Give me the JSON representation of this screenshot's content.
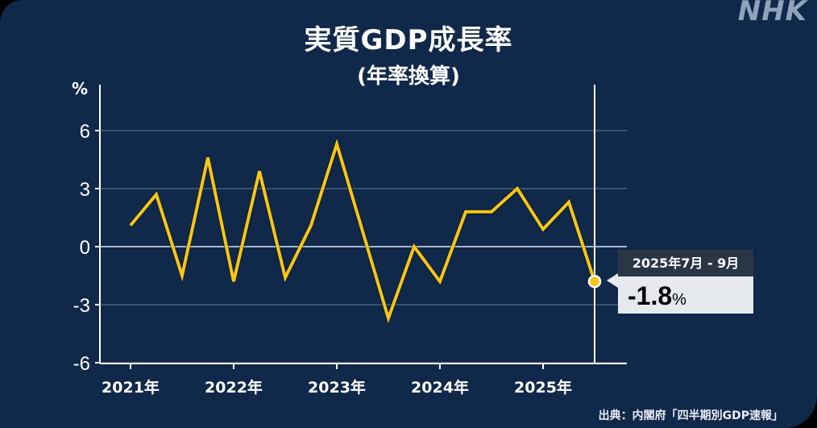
{
  "header": {
    "title": "実質GDP成長率",
    "subtitle": "(年率換算)",
    "logo": "NHK"
  },
  "colors": {
    "background": "#10284a",
    "line": "#f5c518",
    "axis": "#ffffff",
    "grid": "#3a5170",
    "zero_line": "#a9b6c8",
    "callout_header": "#2b3644",
    "callout_body": "#e6eaef"
  },
  "chart_data": {
    "type": "line",
    "title": "実質GDP成長率",
    "subtitle": "(年率換算)",
    "xlabel": "",
    "ylabel": "%",
    "ylim": [
      -6,
      6
    ],
    "yticks": [
      6,
      3,
      0,
      -3,
      -6
    ],
    "xtick_labels": [
      "2021年",
      "2022年",
      "2023年",
      "2024年",
      "2025年"
    ],
    "grid": true,
    "legend": null,
    "x": [
      "2021Q1",
      "2021Q2",
      "2021Q3",
      "2021Q4",
      "2022Q1",
      "2022Q2",
      "2022Q3",
      "2022Q4",
      "2023Q1",
      "2023Q2",
      "2023Q3",
      "2023Q4",
      "2024Q1",
      "2024Q2",
      "2024Q3",
      "2024Q4",
      "2025Q1",
      "2025Q2",
      "2025Q3"
    ],
    "series": [
      {
        "name": "実質GDP成長率(年率換算)",
        "values": [
          1.1,
          2.7,
          -1.5,
          4.6,
          -1.8,
          3.9,
          -1.6,
          1.1,
          5.3,
          0.8,
          -3.7,
          0.0,
          -1.8,
          1.8,
          1.8,
          3.0,
          0.9,
          2.3,
          -1.8
        ]
      }
    ],
    "annotations": [
      {
        "x": "2025Q3",
        "label": "2025年7月 - 9月",
        "value": "-1.8",
        "unit": "%"
      }
    ]
  },
  "axis": {
    "unit": "%",
    "y_labels": [
      "6",
      "3",
      "0",
      "-3",
      "-6"
    ],
    "x_labels": [
      "2021年",
      "2022年",
      "2023年",
      "2024年",
      "2025年"
    ]
  },
  "callout": {
    "period": "2025年7月 - 9月",
    "value": "-1.8",
    "unit": "%"
  },
  "footer": {
    "source": "出典：内閣府「四半期別GDP速報」"
  }
}
